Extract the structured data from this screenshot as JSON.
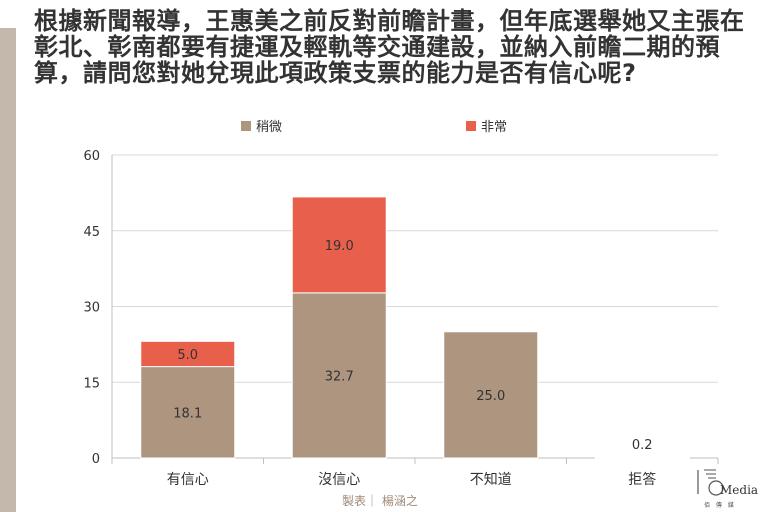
{
  "title": "根據新聞報導，王惠美之前反對前瞻計畫，但年底選舉她又主張在彰北、彰南都要有捷運及輕軌等交通建設，並納入前瞻二期的預算，請問您對她兌現此項政策支票的能力是否有信心呢?",
  "credit": "製表｜ 楊涵之",
  "logo": {
    "text": "Media",
    "subtext": "佰 傳 媒"
  },
  "colors": {
    "series1": "#ad9580",
    "series2": "#e8604c",
    "axis": "#bfbfbf",
    "grid": "#d9d9d9",
    "label": "#333333"
  },
  "chart_data": {
    "type": "bar",
    "stacked": true,
    "categories": [
      "有信心",
      "沒信心",
      "不知道",
      "拒答"
    ],
    "series": [
      {
        "name": "稍微",
        "values": [
          18.1,
          32.7,
          25.0,
          0.2
        ],
        "labels": [
          "18.1",
          "32.7",
          "25.0",
          "0.2"
        ]
      },
      {
        "name": "非常",
        "values": [
          5.0,
          19.0,
          0,
          0
        ],
        "labels": [
          "5.0",
          "19.0",
          "",
          ""
        ]
      }
    ],
    "ylim": [
      0,
      60
    ],
    "yticks": [
      0,
      15,
      30,
      45,
      60
    ],
    "ytick_labels": [
      "0",
      "15",
      "30",
      "45",
      "60"
    ],
    "legend_position": "top",
    "grid": true
  }
}
